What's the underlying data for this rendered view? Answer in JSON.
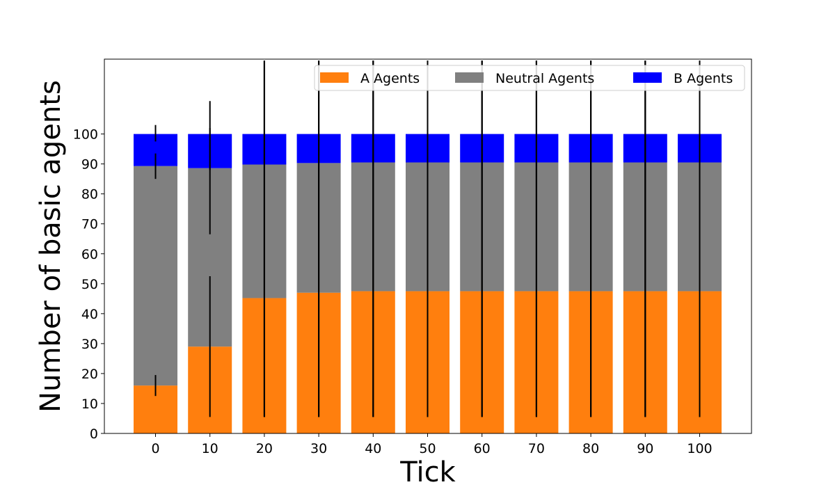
{
  "chart_data": {
    "type": "bar",
    "stacked": true,
    "title": "",
    "xlabel": "Tick",
    "ylabel": "Number of basic agents",
    "categories": [
      "0",
      "10",
      "20",
      "30",
      "40",
      "50",
      "60",
      "70",
      "80",
      "90",
      "100"
    ],
    "yticks": [
      0,
      10,
      20,
      30,
      40,
      50,
      60,
      70,
      80,
      90,
      100
    ],
    "ylim": [
      0,
      125
    ],
    "legend_position": "top-right",
    "series": [
      {
        "name": "A Agents",
        "color": "#ff7f0e",
        "values": [
          16,
          29,
          45.2,
          47,
          47.5,
          47.5,
          47.5,
          47.5,
          47.5,
          47.5,
          47.5
        ],
        "error_range": [
          [
            12.5,
            19.5
          ],
          [
            5.5,
            52.5
          ],
          [
            5.5,
            124.5
          ],
          [
            5.5,
            124.5
          ],
          [
            5.5,
            124.5
          ],
          [
            5.5,
            124.5
          ],
          [
            5.5,
            124.5
          ],
          [
            5.5,
            124.5
          ],
          [
            5.5,
            124.5
          ],
          [
            5.5,
            124.5
          ],
          [
            5.5,
            124.5
          ]
        ]
      },
      {
        "name": "Neutral Agents",
        "color": "#808080",
        "values": [
          73.3,
          59.6,
          44.6,
          43.3,
          43,
          43,
          43,
          43,
          43,
          43,
          43
        ],
        "error_range": [
          [
            85,
            93.5
          ],
          [
            66.5,
            111
          ],
          [
            5.5,
            124.5
          ],
          [
            5.5,
            124.5
          ],
          [
            5.5,
            124.5
          ],
          [
            5.5,
            124.5
          ],
          [
            5.5,
            124.5
          ],
          [
            5.5,
            124.5
          ],
          [
            5.5,
            124.5
          ],
          [
            5.5,
            124.5
          ],
          [
            5.5,
            124.5
          ]
        ]
      },
      {
        "name": "B Agents",
        "color": "#0000ff",
        "values": [
          10.7,
          11.4,
          10.2,
          9.7,
          9.5,
          9.5,
          9.5,
          9.5,
          9.5,
          9.5,
          9.5
        ],
        "error_range": [
          [
            97.5,
            103
          ],
          [
            88,
            102
          ],
          [
            5.5,
            124.5
          ],
          [
            5.5,
            124.5
          ],
          [
            5.5,
            124.5
          ],
          [
            5.5,
            124.5
          ],
          [
            5.5,
            124.5
          ],
          [
            5.5,
            124.5
          ],
          [
            5.5,
            124.5
          ],
          [
            5.5,
            124.5
          ],
          [
            5.5,
            124.5
          ]
        ]
      }
    ]
  }
}
